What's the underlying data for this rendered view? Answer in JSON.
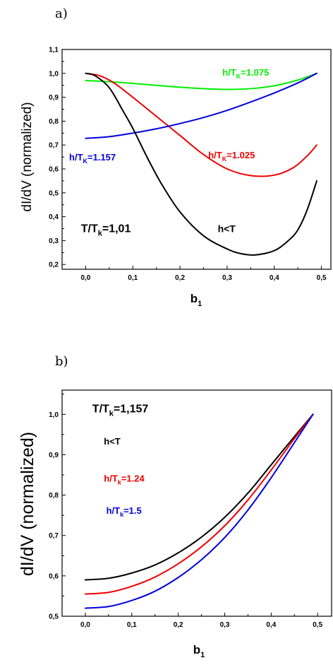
{
  "chart_data": [
    {
      "type": "line",
      "panel": "a)",
      "xlabel": "b",
      "xlabel_sub": "1",
      "ylabel": "dI/dV (normalized)",
      "xlim": [
        -0.05,
        0.52
      ],
      "ylim": [
        0.18,
        1.1
      ],
      "xticks": [
        "0,0",
        "0,1",
        "0,2",
        "0,3",
        "0,4",
        "0,5"
      ],
      "xtick_values": [
        0.0,
        0.1,
        0.2,
        0.3,
        0.4,
        0.5
      ],
      "yticks": [
        "0,2",
        "0,3",
        "0,4",
        "0,5",
        "0,6",
        "0,7",
        "0,8",
        "0,9",
        "1,0",
        "1,1"
      ],
      "ytick_values": [
        0.2,
        0.3,
        0.4,
        0.5,
        0.6,
        0.7,
        0.8,
        0.9,
        1.0,
        1.1
      ],
      "series": [
        {
          "color": "#00ee00",
          "x": [
            0.0,
            0.05,
            0.1,
            0.15,
            0.2,
            0.25,
            0.3,
            0.35,
            0.4,
            0.45,
            0.49
          ],
          "y": [
            0.97,
            0.965,
            0.958,
            0.95,
            0.942,
            0.936,
            0.933,
            0.936,
            0.948,
            0.972,
            1.0
          ]
        },
        {
          "color": "#ee0000",
          "x": [
            0.0,
            0.03,
            0.06,
            0.1,
            0.15,
            0.2,
            0.25,
            0.3,
            0.35,
            0.4,
            0.44,
            0.47,
            0.49
          ],
          "y": [
            1.0,
            0.99,
            0.96,
            0.9,
            0.82,
            0.74,
            0.66,
            0.6,
            0.572,
            0.574,
            0.605,
            0.655,
            0.7
          ]
        },
        {
          "color": "#0000dd",
          "x": [
            0.0,
            0.05,
            0.1,
            0.15,
            0.2,
            0.25,
            0.3,
            0.35,
            0.4,
            0.45,
            0.49
          ],
          "y": [
            0.728,
            0.735,
            0.75,
            0.768,
            0.79,
            0.815,
            0.845,
            0.88,
            0.918,
            0.96,
            1.0
          ]
        },
        {
          "color": "#000000",
          "x": [
            0.0,
            0.02,
            0.05,
            0.08,
            0.1,
            0.13,
            0.16,
            0.2,
            0.25,
            0.3,
            0.33,
            0.36,
            0.4,
            0.43,
            0.45,
            0.47,
            0.49
          ],
          "y": [
            1.0,
            0.99,
            0.94,
            0.84,
            0.77,
            0.65,
            0.54,
            0.42,
            0.32,
            0.265,
            0.245,
            0.24,
            0.258,
            0.3,
            0.345,
            0.43,
            0.55
          ]
        }
      ],
      "annotations": [
        {
          "kind": "ratio",
          "main": "h/T",
          "sub": "K",
          "suffix": "=1.075",
          "color": "#00ee00",
          "x": 0.29,
          "y": 0.99,
          "size": 13
        },
        {
          "kind": "ratio",
          "main": "h/T",
          "sub": "K",
          "suffix": "=1.025",
          "color": "#ee0000",
          "x": 0.26,
          "y": 0.645,
          "size": 13
        },
        {
          "kind": "ratio",
          "main": "h/T",
          "sub": "K",
          "suffix": "=1.157",
          "color": "#0000dd",
          "x": -0.035,
          "y": 0.635,
          "size": 13
        },
        {
          "kind": "ratio",
          "main": "T/T",
          "sub": "k",
          "suffix": "=1,01",
          "color": "#000000",
          "x": -0.01,
          "y": 0.335,
          "size": 16
        },
        {
          "kind": "plain",
          "main": "h<T",
          "sub": "",
          "suffix": "",
          "color": "#000000",
          "x": 0.28,
          "y": 0.335,
          "size": 14
        }
      ]
    },
    {
      "type": "line",
      "panel": "b)",
      "xlabel": "b",
      "xlabel_sub": "1",
      "ylabel": "dI/dV (normalized)",
      "xlim": [
        -0.05,
        0.53
      ],
      "ylim": [
        0.5,
        1.06
      ],
      "xticks": [
        "0,0",
        "0,1",
        "0,2",
        "0,3",
        "0,4",
        "0,5"
      ],
      "xtick_values": [
        0.0,
        0.1,
        0.2,
        0.3,
        0.4,
        0.5
      ],
      "yticks": [
        "0,5",
        "0,6",
        "0,7",
        "0,8",
        "0,9",
        "1,0"
      ],
      "ytick_values": [
        0.5,
        0.6,
        0.7,
        0.8,
        0.9,
        1.0
      ],
      "series": [
        {
          "color": "#000000",
          "x": [
            0.0,
            0.05,
            0.1,
            0.15,
            0.2,
            0.25,
            0.3,
            0.35,
            0.4,
            0.45,
            0.49
          ],
          "y": [
            0.59,
            0.594,
            0.607,
            0.627,
            0.657,
            0.696,
            0.745,
            0.805,
            0.875,
            0.945,
            1.0
          ]
        },
        {
          "color": "#ee0000",
          "x": [
            0.0,
            0.05,
            0.1,
            0.15,
            0.2,
            0.25,
            0.3,
            0.35,
            0.4,
            0.45,
            0.49
          ],
          "y": [
            0.555,
            0.559,
            0.574,
            0.597,
            0.63,
            0.672,
            0.724,
            0.788,
            0.862,
            0.94,
            1.0
          ]
        },
        {
          "color": "#0000dd",
          "x": [
            0.0,
            0.05,
            0.1,
            0.15,
            0.2,
            0.25,
            0.3,
            0.35,
            0.4,
            0.45,
            0.49
          ],
          "y": [
            0.52,
            0.524,
            0.539,
            0.562,
            0.596,
            0.64,
            0.695,
            0.763,
            0.843,
            0.93,
            1.0
          ]
        }
      ],
      "annotations": [
        {
          "kind": "ratio",
          "main": "T/T",
          "sub": "k",
          "suffix": "=1,157",
          "color": "#000000",
          "x": 0.015,
          "y": 1.005,
          "size": 16
        },
        {
          "kind": "plain",
          "main": "h<T",
          "sub": "",
          "suffix": "",
          "color": "#000000",
          "x": 0.04,
          "y": 0.925,
          "size": 13
        },
        {
          "kind": "ratio",
          "main": "h/T",
          "sub": "k",
          "suffix": "=1.24",
          "color": "#ee0000",
          "x": 0.04,
          "y": 0.833,
          "size": 13
        },
        {
          "kind": "ratio",
          "main": "h/T",
          "sub": "k",
          "suffix": "=1.5",
          "color": "#0000dd",
          "x": 0.045,
          "y": 0.754,
          "size": 13
        }
      ]
    }
  ]
}
